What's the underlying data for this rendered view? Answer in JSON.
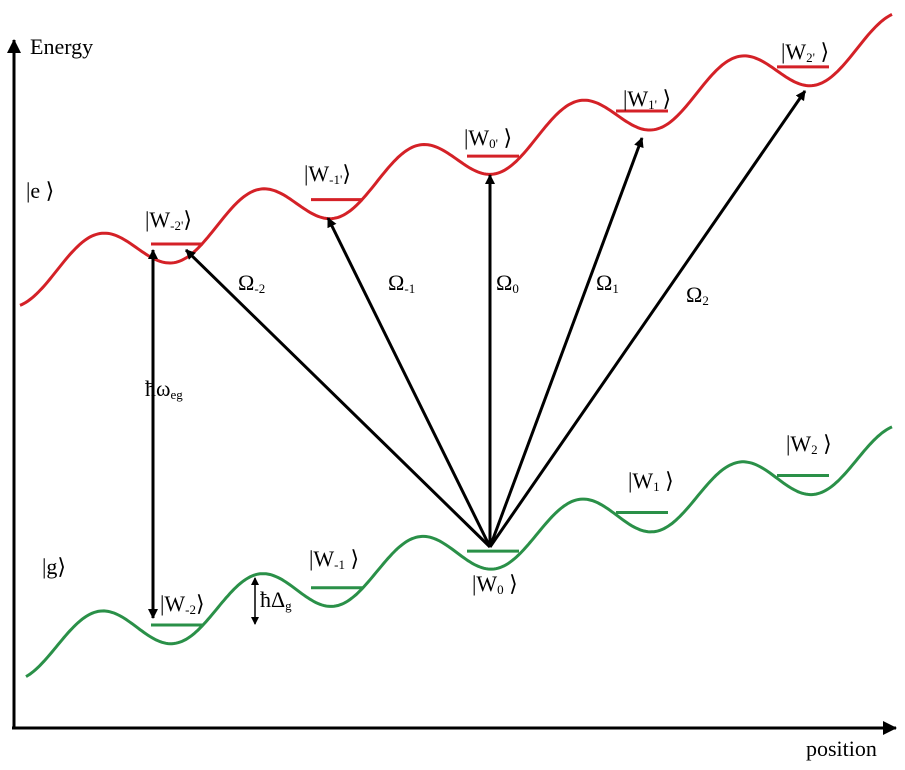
{
  "axes": {
    "y_label": "Energy",
    "x_label": "position"
  },
  "colors": {
    "excited": "#d42127",
    "ground": "#2a9048",
    "arrow": "#000000"
  },
  "excited_state_label": "|e ⟩",
  "ground_state_label": "|g⟩",
  "excited_wells": [
    {
      "base": "|W",
      "sub": "-2'",
      "close": "⟩"
    },
    {
      "base": "|W",
      "sub": "-1'",
      "close": "⟩"
    },
    {
      "base": "|W",
      "sub": "0'",
      "close": " ⟩"
    },
    {
      "base": "|W",
      "sub": "1'",
      "close": " ⟩"
    },
    {
      "base": "|W",
      "sub": "2'",
      "close": " ⟩"
    }
  ],
  "ground_wells": [
    {
      "base": "|W",
      "sub": "-2",
      "close": "⟩"
    },
    {
      "base": "|W",
      "sub": "-1",
      "close": " ⟩"
    },
    {
      "base": "|W",
      "sub": "0",
      "close": " ⟩"
    },
    {
      "base": "|W",
      "sub": "1",
      "close": " ⟩"
    },
    {
      "base": "|W",
      "sub": "2",
      "close": " ⟩"
    }
  ],
  "couplings": [
    {
      "base": "Ω",
      "sub": "-2"
    },
    {
      "base": "Ω",
      "sub": "-1"
    },
    {
      "base": "Ω",
      "sub": "0"
    },
    {
      "base": "Ω",
      "sub": "1"
    },
    {
      "base": "Ω",
      "sub": "2"
    }
  ],
  "transition_energy": {
    "base": "ħω",
    "sub": "eg"
  },
  "level_spacing": {
    "base": "ħΔ",
    "sub": "g"
  }
}
